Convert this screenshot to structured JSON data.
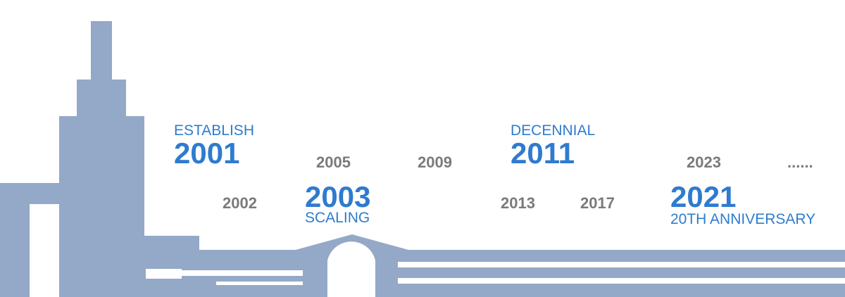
{
  "milestones": [
    {
      "label": "ESTABLISH",
      "year": "2001"
    },
    {
      "label": "SCALING",
      "year": "2003"
    },
    {
      "label": "DECENNIAL",
      "year": "2011"
    },
    {
      "label": "20TH ANNIVERSARY",
      "year": "2021"
    }
  ],
  "years": [
    "2002",
    "2005",
    "2009",
    "2013",
    "2017",
    "2023"
  ],
  "more": "......"
}
